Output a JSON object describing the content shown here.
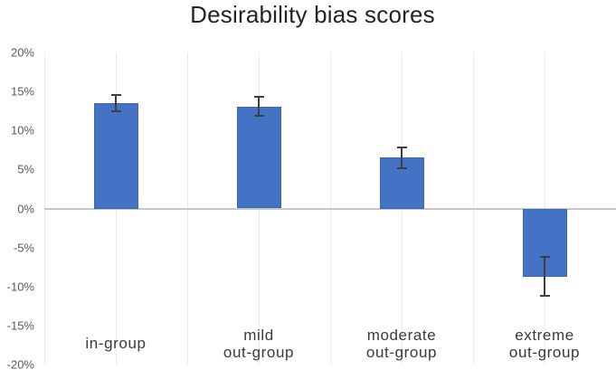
{
  "chart_data": {
    "type": "bar",
    "title": "Desirability bias scores",
    "categories": [
      "in-group",
      "mild out-group",
      "moderate out-group",
      "extreme out-group"
    ],
    "category_label_lines": [
      [
        "in-group"
      ],
      [
        "mild",
        "out-group"
      ],
      [
        "moderate",
        "out-group"
      ],
      [
        "extreme",
        "out-group"
      ]
    ],
    "values": [
      13.5,
      13.1,
      6.5,
      -8.7
    ],
    "error_bars": [
      1.2,
      1.3,
      1.4,
      2.6
    ],
    "unit": "%",
    "xlabel": "",
    "ylabel": "",
    "ylim": [
      -20,
      20
    ],
    "y_ticks": {
      "values": [
        20,
        15,
        10,
        5,
        0,
        -5,
        -10,
        -15,
        -20
      ],
      "labels": [
        "20%",
        "15%",
        "10%",
        "5%",
        "0%",
        "-5%",
        "-10%",
        "-15%",
        "-20%"
      ]
    },
    "legend": "none",
    "grid": "vertical-only",
    "colors": {
      "bar": "#4472C4",
      "bar_border": "#3E68B0",
      "error_bar": "#3F3F3F",
      "zero_line": "#C6C6C6",
      "gridline": "#ECECEC",
      "y_tick_text": "#595959",
      "category_text": "#3A3A3A",
      "title_text": "#242424",
      "background": "#FFFFFF"
    }
  }
}
